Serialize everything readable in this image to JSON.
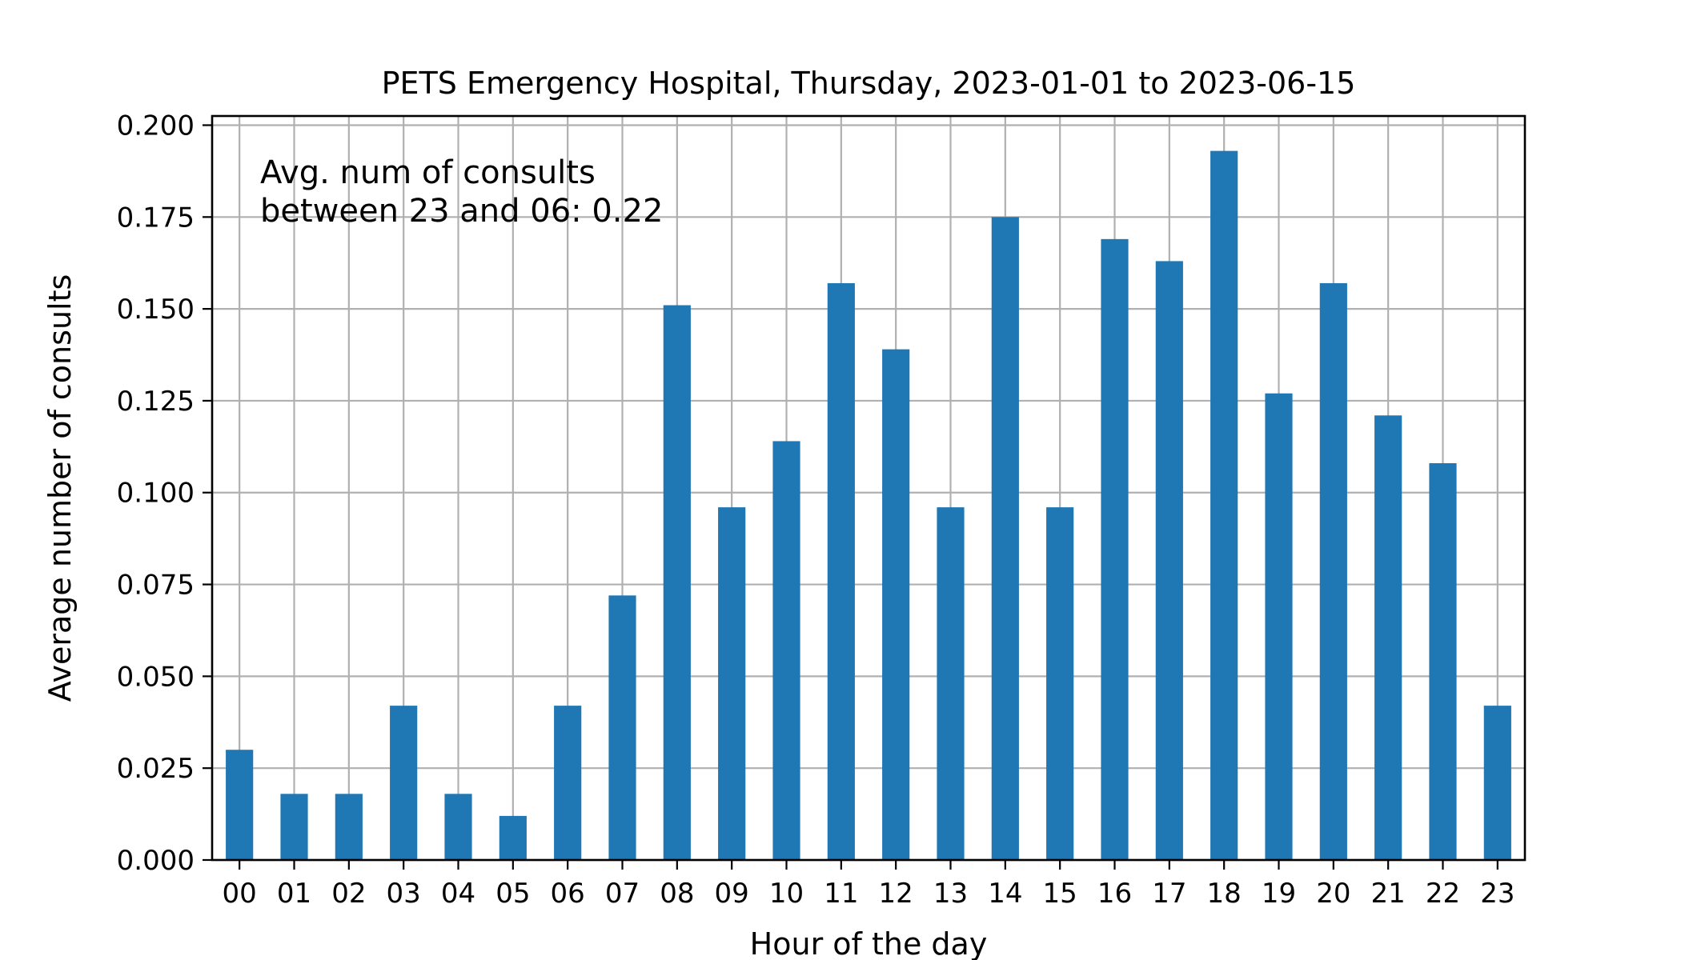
{
  "chart_data": {
    "type": "bar",
    "title": "PETS Emergency Hospital, Thursday, 2023-01-01 to 2023-06-15",
    "xlabel": "Hour of the day",
    "ylabel": "Average number of consults",
    "categories": [
      "00",
      "01",
      "02",
      "03",
      "04",
      "05",
      "06",
      "07",
      "08",
      "09",
      "10",
      "11",
      "12",
      "13",
      "14",
      "15",
      "16",
      "17",
      "18",
      "19",
      "20",
      "21",
      "22",
      "23"
    ],
    "values": [
      0.03,
      0.018,
      0.018,
      0.042,
      0.018,
      0.012,
      0.042,
      0.072,
      0.151,
      0.096,
      0.114,
      0.157,
      0.139,
      0.096,
      0.175,
      0.096,
      0.169,
      0.163,
      0.193,
      0.127,
      0.157,
      0.121,
      0.108,
      0.042
    ],
    "ylim": [
      0,
      0.2025
    ],
    "yticks": [
      "0.000",
      "0.025",
      "0.050",
      "0.075",
      "0.100",
      "0.125",
      "0.150",
      "0.175",
      "0.200"
    ],
    "ytick_values": [
      0,
      0.025,
      0.05,
      0.075,
      0.1,
      0.125,
      0.15,
      0.175,
      0.2
    ],
    "grid": true,
    "bar_color": "#1f77b4",
    "annotation": {
      "lines": [
        "Avg. num of consults",
        "between 23 and 06: 0.22"
      ]
    }
  }
}
